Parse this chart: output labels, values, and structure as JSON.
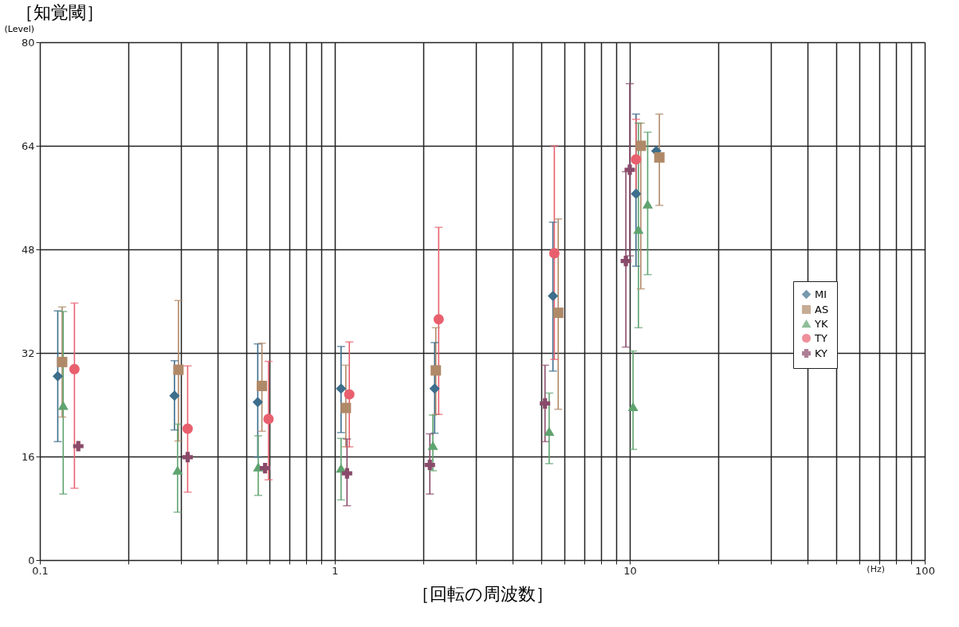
{
  "chart_data": {
    "type": "scatter",
    "title": "［知覚閾］",
    "ylabel": "(Level)",
    "xlabel": "［回転の周波数］",
    "annotations": [
      "(Hz)"
    ],
    "log": "x",
    "xlim": [
      0.1,
      100
    ],
    "ylim": [
      0,
      80
    ],
    "xticks": [
      {
        "value": 0.1,
        "label": "0.1"
      },
      {
        "value": 0.2,
        "label": null
      },
      {
        "value": 0.3,
        "label": null
      },
      {
        "value": 0.4,
        "label": null
      },
      {
        "value": 0.5,
        "label": null
      },
      {
        "value": 0.6,
        "label": null
      },
      {
        "value": 0.7,
        "label": null
      },
      {
        "value": 0.8,
        "label": null
      },
      {
        "value": 0.9,
        "label": null
      },
      1,
      {
        "value": 2,
        "label": null
      },
      {
        "value": 3,
        "label": null
      },
      {
        "value": 4,
        "label": null
      },
      {
        "value": 5,
        "label": null
      },
      {
        "value": 6,
        "label": null
      },
      {
        "value": 7,
        "label": null
      },
      {
        "value": 8,
        "label": null
      },
      {
        "value": 9,
        "label": null
      },
      10,
      {
        "value": 20,
        "label": null
      },
      {
        "value": 30,
        "label": null
      },
      {
        "value": 40,
        "label": null
      },
      {
        "value": 50,
        "label": null
      },
      {
        "value": 60,
        "label": null
      },
      {
        "value": 70,
        "label": null
      },
      {
        "value": 80,
        "label": null
      },
      {
        "value": 90,
        "label": null
      },
      100
    ],
    "yticks": [
      0,
      16,
      32,
      48,
      64,
      80
    ],
    "grid": true,
    "legend": "right",
    "series": [
      {
        "name": "MI",
        "color": "#3d6e8c",
        "marker": "diamond",
        "x": [
          0.115,
          0.286,
          0.548,
          1.05,
          2.18,
          5.49,
          10.5,
          12.3
        ],
        "values": [
          28.4,
          25.4,
          24.4,
          26.5,
          26.5,
          40.8,
          56.6,
          63.2
        ],
        "errors": [
          [
            18.3,
            38.5
          ],
          [
            20.1,
            30.8
          ],
          [
            15.9,
            33.4
          ],
          [
            19.7,
            33.0
          ],
          [
            19.6,
            33.6
          ],
          [
            29.2,
            52.2
          ],
          [
            45.4,
            68.9
          ],
          null
        ]
      },
      {
        "name": "AS",
        "color": "#b08968",
        "marker": "square",
        "x": [
          0.119,
          0.295,
          0.566,
          1.09,
          2.2,
          5.72,
          10.9,
          12.6
        ],
        "values": [
          30.6,
          29.4,
          26.9,
          23.5,
          29.3,
          38.2,
          64.0,
          62.2
        ],
        "errors": [
          [
            22.1,
            39.1
          ],
          [
            18.4,
            40.1
          ],
          [
            19.9,
            33.5
          ],
          [
            17.5,
            30.1
          ],
          [
            22.5,
            35.9
          ],
          [
            23.3,
            52.7
          ],
          [
            41.9,
            67.5
          ],
          [
            54.8,
            68.9
          ]
        ]
      },
      {
        "name": "YK",
        "color": "#5fa36f",
        "marker": "triangle",
        "x": [
          0.12,
          0.293,
          0.55,
          1.05,
          2.15,
          5.33,
          10.26,
          10.7,
          11.5
        ],
        "values": [
          23.9,
          13.9,
          14.4,
          14.2,
          17.7,
          19.9,
          23.7,
          51.1,
          55.0
        ],
        "errors": [
          [
            10.2,
            38.4
          ],
          [
            7.4,
            21.0
          ],
          [
            10.0,
            19.2
          ],
          [
            9.3,
            18.8
          ],
          [
            13.8,
            22.4
          ],
          [
            14.9,
            25.8
          ],
          [
            17.1,
            32.3
          ],
          [
            35.9,
            67.5
          ],
          [
            44.1,
            66.1
          ]
        ]
      },
      {
        "name": "TY",
        "color": "#e8606e",
        "marker": "circle",
        "x": [
          0.131,
          0.317,
          0.596,
          1.12,
          2.25,
          5.55,
          10.5
        ],
        "values": [
          29.5,
          20.3,
          21.8,
          25.6,
          37.2,
          47.4,
          61.9
        ],
        "errors": [
          [
            11.1,
            39.7
          ],
          [
            10.5,
            30.0
          ],
          [
            12.4,
            30.7
          ],
          [
            17.5,
            33.7
          ],
          [
            22.5,
            51.4
          ],
          [
            31.0,
            64.0
          ],
          [
            56.4,
            68.1
          ]
        ]
      },
      {
        "name": "KY",
        "color": "#8a4a6a",
        "marker": "cross",
        "x": [
          0.135,
          0.317,
          0.58,
          1.1,
          2.1,
          5.16,
          9.7,
          10.0
        ],
        "values": [
          17.6,
          15.9,
          14.2,
          13.4,
          14.7,
          24.2,
          46.2,
          60.3
        ],
        "errors": [
          null,
          null,
          null,
          [
            8.4,
            18.7
          ],
          [
            10.2,
            19.5
          ],
          [
            18.3,
            30.1
          ],
          [
            32.9,
            60.0
          ],
          [
            47.0,
            73.6
          ]
        ]
      }
    ]
  }
}
